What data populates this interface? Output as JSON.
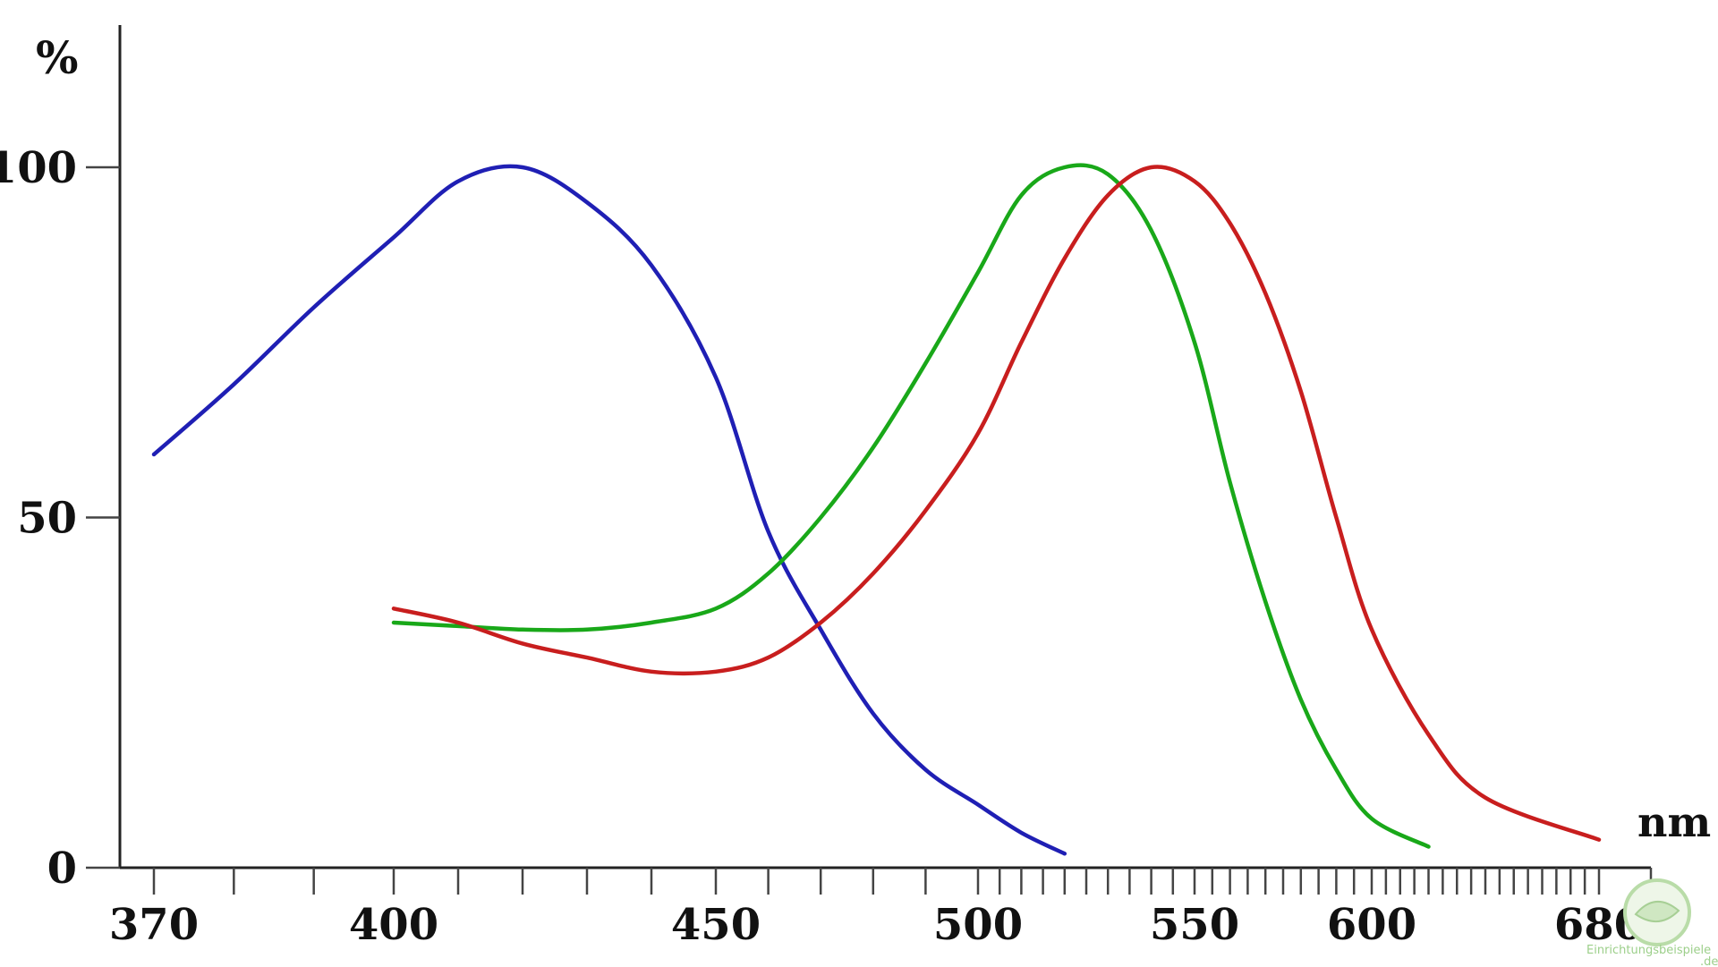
{
  "chart_data": {
    "type": "line",
    "xlabel": "nm",
    "ylabel": "%",
    "ylim": [
      0,
      120
    ],
    "y_ticks": [
      0,
      50,
      100
    ],
    "x_tick_labels": [
      "370",
      "400",
      "450",
      "500",
      "550",
      "600",
      "680"
    ],
    "grid": false,
    "legend": "none",
    "series": [
      {
        "color": "#1f1fb4",
        "points": [
          [
            370,
            59
          ],
          [
            380,
            69
          ],
          [
            390,
            80
          ],
          [
            400,
            90
          ],
          [
            410,
            98
          ],
          [
            420,
            100
          ],
          [
            430,
            95
          ],
          [
            440,
            86
          ],
          [
            450,
            70
          ],
          [
            460,
            48
          ],
          [
            470,
            34
          ],
          [
            480,
            22
          ],
          [
            490,
            14
          ],
          [
            500,
            9
          ],
          [
            510,
            5
          ],
          [
            520,
            2
          ]
        ]
      },
      {
        "color": "#19a819",
        "points": [
          [
            400,
            35
          ],
          [
            410,
            34.5
          ],
          [
            420,
            34
          ],
          [
            430,
            34
          ],
          [
            440,
            35
          ],
          [
            450,
            37
          ],
          [
            460,
            42
          ],
          [
            470,
            50
          ],
          [
            480,
            60
          ],
          [
            490,
            72
          ],
          [
            500,
            85
          ],
          [
            510,
            96
          ],
          [
            520,
            100
          ],
          [
            530,
            99
          ],
          [
            540,
            91
          ],
          [
            550,
            75
          ],
          [
            560,
            55
          ],
          [
            570,
            38
          ],
          [
            580,
            24
          ],
          [
            590,
            14
          ],
          [
            600,
            7
          ],
          [
            620,
            3
          ]
        ]
      },
      {
        "color": "#c81e1e",
        "points": [
          [
            400,
            37
          ],
          [
            410,
            35
          ],
          [
            420,
            32
          ],
          [
            430,
            30
          ],
          [
            440,
            28
          ],
          [
            450,
            28
          ],
          [
            460,
            30
          ],
          [
            470,
            35
          ],
          [
            480,
            42
          ],
          [
            490,
            51
          ],
          [
            500,
            62
          ],
          [
            510,
            75
          ],
          [
            520,
            87
          ],
          [
            530,
            96
          ],
          [
            540,
            100
          ],
          [
            550,
            98
          ],
          [
            560,
            92
          ],
          [
            570,
            82
          ],
          [
            580,
            68
          ],
          [
            590,
            50
          ],
          [
            600,
            34
          ],
          [
            620,
            19
          ],
          [
            640,
            10
          ],
          [
            680,
            4
          ]
        ]
      }
    ]
  },
  "watermark": {
    "text": "Einrichtungsbeispiele",
    "suffix": ".de"
  }
}
